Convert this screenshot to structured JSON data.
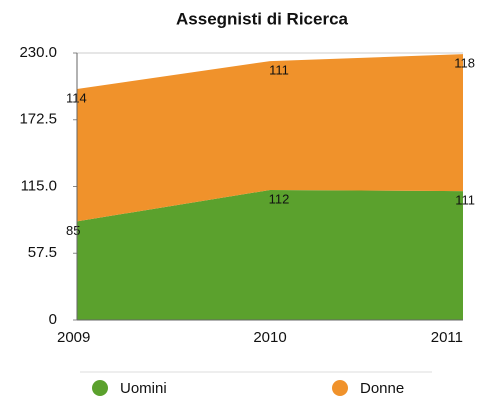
{
  "chart_data": {
    "type": "stacked_area",
    "title": "Assegnisti di Ricerca",
    "categories": [
      "2009",
      "2010",
      "2011"
    ],
    "series": [
      {
        "name": "Uomini",
        "color": "#5ba12d",
        "values": [
          85,
          112,
          111
        ]
      },
      {
        "name": "Donne",
        "color": "#f0922b",
        "values": [
          114,
          111,
          118
        ]
      }
    ],
    "ylim": [
      0,
      230
    ],
    "yticks": [
      0,
      57.5,
      {
        "value": 115,
        "label": "115.0"
      },
      172.5,
      {
        "value": 230,
        "label": "230.0"
      }
    ],
    "legend": "bottom"
  }
}
